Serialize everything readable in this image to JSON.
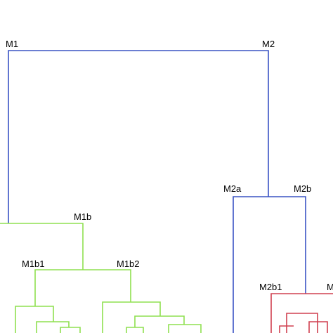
{
  "nodes": [
    {
      "label": "M1"
    },
    {
      "label": "M2"
    },
    {
      "label": "M2a"
    },
    {
      "label": "M2b"
    },
    {
      "label": "M1b"
    },
    {
      "label": "M1b1"
    },
    {
      "label": "M1b2"
    },
    {
      "label": "M2b1"
    },
    {
      "label": "M"
    }
  ]
}
